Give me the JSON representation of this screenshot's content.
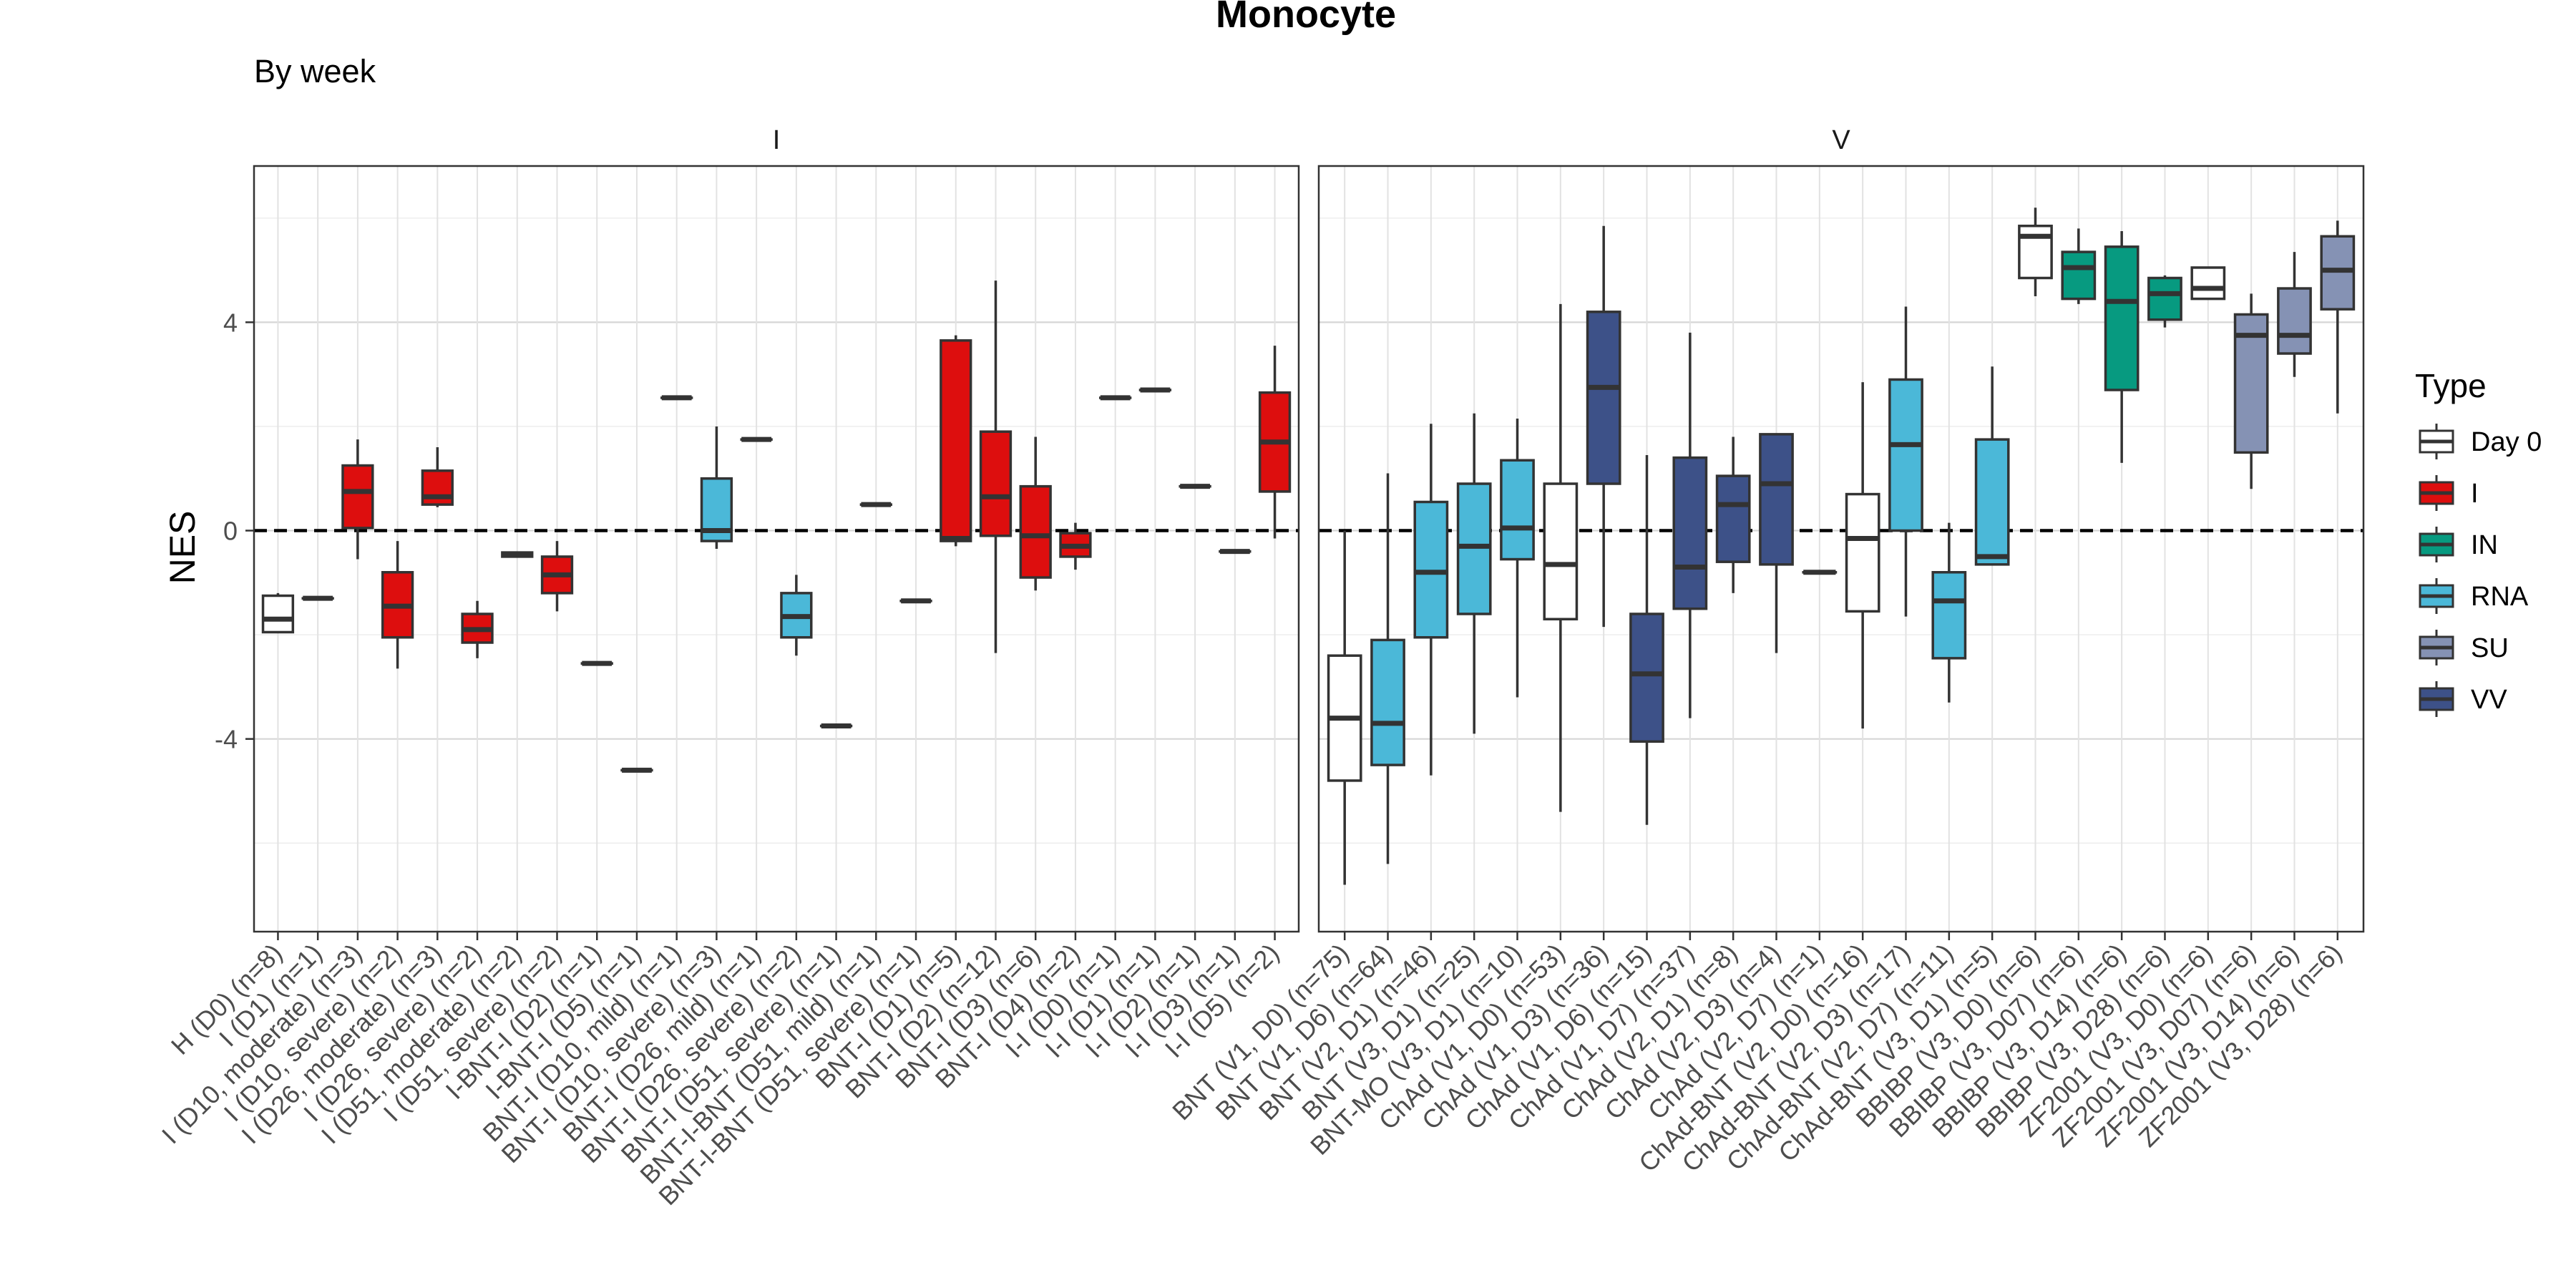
{
  "chart_data": {
    "type": "box",
    "title": "Monocyte",
    "subtitle": "By week",
    "ylabel": "NES",
    "xlabel": "",
    "ylim": [
      -7.7,
      7.0
    ],
    "yticks": [
      4,
      0,
      -4
    ],
    "ytick_labels": [
      "4",
      "0",
      "-4"
    ],
    "reference_line": {
      "y": 0,
      "style": "dashed"
    },
    "grid": true,
    "legend": {
      "title": "Type",
      "position": "right",
      "entries": [
        {
          "label": "Day 0",
          "color": "#ffffff"
        },
        {
          "label": "I",
          "color": "#dd0e0e"
        },
        {
          "label": "IN",
          "color": "#079a80"
        },
        {
          "label": "RNA",
          "color": "#4bb8d8"
        },
        {
          "label": "SU",
          "color": "#8592b4"
        },
        {
          "label": "VV",
          "color": "#3d5188"
        }
      ]
    },
    "panels": [
      {
        "label": "I",
        "categories": [
          {
            "label": "H (D0) (n=8)",
            "type": "Day 0",
            "q1": -1.95,
            "median": -1.7,
            "q3": -1.25,
            "whisker_low": -1.95,
            "whisker_high": -1.2
          },
          {
            "label": "I (D1) (n=1)",
            "type": "I",
            "q1": -1.3,
            "median": -1.3,
            "q3": -1.3,
            "whisker_low": -1.3,
            "whisker_high": -1.3
          },
          {
            "label": "I (D10, moderate) (n=3)",
            "type": "I",
            "q1": 0.05,
            "median": 0.75,
            "q3": 1.25,
            "whisker_low": -0.55,
            "whisker_high": 1.75
          },
          {
            "label": "I (D10, severe) (n=2)",
            "type": "I",
            "q1": -2.05,
            "median": -1.45,
            "q3": -0.8,
            "whisker_low": -2.65,
            "whisker_high": -0.2
          },
          {
            "label": "I (D26, moderate) (n=3)",
            "type": "I",
            "q1": 0.5,
            "median": 0.65,
            "q3": 1.15,
            "whisker_low": 0.45,
            "whisker_high": 1.6
          },
          {
            "label": "I (D26, severe) (n=2)",
            "type": "I",
            "q1": -2.15,
            "median": -1.9,
            "q3": -1.6,
            "whisker_low": -2.45,
            "whisker_high": -1.35
          },
          {
            "label": "I (D51, moderate) (n=2)",
            "type": "I",
            "q1": -0.5,
            "median": -0.45,
            "q3": -0.42,
            "whisker_low": -0.52,
            "whisker_high": -0.4
          },
          {
            "label": "I (D51, severe) (n=2)",
            "type": "I",
            "q1": -1.2,
            "median": -0.85,
            "q3": -0.5,
            "whisker_low": -1.55,
            "whisker_high": -0.2
          },
          {
            "label": "I-BNT-I (D2) (n=1)",
            "type": "I",
            "q1": -2.55,
            "median": -2.55,
            "q3": -2.55,
            "whisker_low": -2.55,
            "whisker_high": -2.55
          },
          {
            "label": "I-BNT-I (D5) (n=1)",
            "type": "I",
            "q1": -4.6,
            "median": -4.6,
            "q3": -4.6,
            "whisker_low": -4.6,
            "whisker_high": -4.6
          },
          {
            "label": "BNT-I (D10, mild) (n=1)",
            "type": "I",
            "q1": 2.55,
            "median": 2.55,
            "q3": 2.55,
            "whisker_low": 2.55,
            "whisker_high": 2.55
          },
          {
            "label": "BNT-I (D10, severe) (n=3)",
            "type": "RNA",
            "q1": -0.2,
            "median": 0.0,
            "q3": 1.0,
            "whisker_low": -0.35,
            "whisker_high": 2.0
          },
          {
            "label": "BNT-I (D26, mild) (n=1)",
            "type": "I",
            "q1": 1.75,
            "median": 1.75,
            "q3": 1.75,
            "whisker_low": 1.75,
            "whisker_high": 1.75
          },
          {
            "label": "BNT-I (D26, severe) (n=2)",
            "type": "RNA",
            "q1": -2.05,
            "median": -1.65,
            "q3": -1.2,
            "whisker_low": -2.4,
            "whisker_high": -0.85
          },
          {
            "label": "BNT-I (D51, severe) (n=1)",
            "type": "I",
            "q1": -3.75,
            "median": -3.75,
            "q3": -3.75,
            "whisker_low": -3.75,
            "whisker_high": -3.75
          },
          {
            "label": "BNT-I-BNT (D51, mild) (n=1)",
            "type": "I",
            "q1": 0.5,
            "median": 0.5,
            "q3": 0.5,
            "whisker_low": 0.5,
            "whisker_high": 0.5
          },
          {
            "label": "BNT-I-BNT (D51, severe) (n=1)",
            "type": "I",
            "q1": -1.35,
            "median": -1.35,
            "q3": -1.35,
            "whisker_low": -1.35,
            "whisker_high": -1.35
          },
          {
            "label": "BNT-I (D1) (n=5)",
            "type": "I",
            "q1": -0.2,
            "median": -0.15,
            "q3": 3.65,
            "whisker_low": -0.3,
            "whisker_high": 3.75
          },
          {
            "label": "BNT-I (D2) (n=12)",
            "type": "I",
            "q1": -0.1,
            "median": 0.65,
            "q3": 1.9,
            "whisker_low": -2.35,
            "whisker_high": 4.8
          },
          {
            "label": "BNT-I (D3) (n=6)",
            "type": "I",
            "q1": -0.9,
            "median": -0.1,
            "q3": 0.85,
            "whisker_low": -1.15,
            "whisker_high": 1.8
          },
          {
            "label": "BNT-I (D4) (n=2)",
            "type": "I",
            "q1": -0.5,
            "median": -0.3,
            "q3": -0.05,
            "whisker_low": -0.75,
            "whisker_high": 0.15
          },
          {
            "label": "I-I (D0) (n=1)",
            "type": "I",
            "q1": 2.55,
            "median": 2.55,
            "q3": 2.55,
            "whisker_low": 2.55,
            "whisker_high": 2.55
          },
          {
            "label": "I-I (D1) (n=1)",
            "type": "I",
            "q1": 2.7,
            "median": 2.7,
            "q3": 2.7,
            "whisker_low": 2.7,
            "whisker_high": 2.7
          },
          {
            "label": "I-I (D2) (n=1)",
            "type": "I",
            "q1": 0.85,
            "median": 0.85,
            "q3": 0.85,
            "whisker_low": 0.85,
            "whisker_high": 0.85
          },
          {
            "label": "I-I (D3) (n=1)",
            "type": "I",
            "q1": -0.4,
            "median": -0.4,
            "q3": -0.4,
            "whisker_low": -0.4,
            "whisker_high": -0.4
          },
          {
            "label": "I-I (D5) (n=2)",
            "type": "I",
            "q1": 0.75,
            "median": 1.7,
            "q3": 2.65,
            "whisker_low": -0.15,
            "whisker_high": 3.55
          }
        ]
      },
      {
        "label": "V",
        "categories": [
          {
            "label": "BNT (V1, D0) (n=75)",
            "type": "Day 0",
            "q1": -4.8,
            "median": -3.6,
            "q3": -2.4,
            "whisker_low": -6.8,
            "whisker_high": 0.0
          },
          {
            "label": "BNT (V1, D6) (n=64)",
            "type": "RNA",
            "q1": -4.5,
            "median": -3.7,
            "q3": -2.1,
            "whisker_low": -6.4,
            "whisker_high": 1.1
          },
          {
            "label": "BNT (V2, D1) (n=46)",
            "type": "RNA",
            "q1": -2.05,
            "median": -0.8,
            "q3": 0.55,
            "whisker_low": -4.7,
            "whisker_high": 2.05
          },
          {
            "label": "BNT (V3, D1) (n=25)",
            "type": "RNA",
            "q1": -1.6,
            "median": -0.3,
            "q3": 0.9,
            "whisker_low": -3.9,
            "whisker_high": 2.25
          },
          {
            "label": "BNT-MO (V3, D1) (n=10)",
            "type": "RNA",
            "q1": -0.55,
            "median": 0.05,
            "q3": 1.35,
            "whisker_low": -3.2,
            "whisker_high": 2.15
          },
          {
            "label": "ChAd (V1, D0) (n=53)",
            "type": "Day 0",
            "q1": -1.7,
            "median": -0.65,
            "q3": 0.9,
            "whisker_low": -5.4,
            "whisker_high": 4.35
          },
          {
            "label": "ChAd (V1, D3) (n=36)",
            "type": "VV",
            "q1": 0.9,
            "median": 2.75,
            "q3": 4.2,
            "whisker_low": -1.85,
            "whisker_high": 5.85
          },
          {
            "label": "ChAd (V1, D6) (n=15)",
            "type": "VV",
            "q1": -4.05,
            "median": -2.75,
            "q3": -1.6,
            "whisker_low": -5.65,
            "whisker_high": 1.45
          },
          {
            "label": "ChAd (V1, D7) (n=37)",
            "type": "VV",
            "q1": -1.5,
            "median": -0.7,
            "q3": 1.4,
            "whisker_low": -3.6,
            "whisker_high": 3.8
          },
          {
            "label": "ChAd (V2, D1) (n=8)",
            "type": "VV",
            "q1": -0.6,
            "median": 0.5,
            "q3": 1.05,
            "whisker_low": -1.2,
            "whisker_high": 1.8
          },
          {
            "label": "ChAd (V2, D3) (n=4)",
            "type": "VV",
            "q1": -0.65,
            "median": 0.9,
            "q3": 1.85,
            "whisker_low": -2.35,
            "whisker_high": 1.85
          },
          {
            "label": "ChAd (V2, D7) (n=1)",
            "type": "VV",
            "q1": -0.8,
            "median": -0.8,
            "q3": -0.8,
            "whisker_low": -0.8,
            "whisker_high": -0.8
          },
          {
            "label": "ChAd-BNT (V2, D0) (n=16)",
            "type": "Day 0",
            "q1": -1.55,
            "median": -0.15,
            "q3": 0.7,
            "whisker_low": -3.8,
            "whisker_high": 2.85
          },
          {
            "label": "ChAd-BNT (V2, D3) (n=17)",
            "type": "RNA",
            "q1": 0.0,
            "median": 1.65,
            "q3": 2.9,
            "whisker_low": -1.65,
            "whisker_high": 4.3
          },
          {
            "label": "ChAd-BNT (V2, D7) (n=11)",
            "type": "RNA",
            "q1": -2.45,
            "median": -1.35,
            "q3": -0.8,
            "whisker_low": -3.3,
            "whisker_high": 0.15
          },
          {
            "label": "ChAd-BNT (V3, D1) (n=5)",
            "type": "RNA",
            "q1": -0.65,
            "median": -0.5,
            "q3": 1.75,
            "whisker_low": -0.65,
            "whisker_high": 3.15
          },
          {
            "label": "BBIBP (V3, D0) (n=6)",
            "type": "Day 0",
            "q1": 4.85,
            "median": 5.65,
            "q3": 5.85,
            "whisker_low": 4.5,
            "whisker_high": 6.2
          },
          {
            "label": "BBIBP (V3, D07) (n=6)",
            "type": "IN",
            "q1": 4.45,
            "median": 5.05,
            "q3": 5.35,
            "whisker_low": 4.35,
            "whisker_high": 5.8
          },
          {
            "label": "BBIBP (V3, D14) (n=6)",
            "type": "IN",
            "q1": 2.7,
            "median": 4.4,
            "q3": 5.45,
            "whisker_low": 1.3,
            "whisker_high": 5.75
          },
          {
            "label": "BBIBP (V3, D28) (n=6)",
            "type": "IN",
            "q1": 4.05,
            "median": 4.55,
            "q3": 4.85,
            "whisker_low": 3.9,
            "whisker_high": 4.9
          },
          {
            "label": "ZF2001 (V3, D0) (n=6)",
            "type": "Day 0",
            "q1": 4.45,
            "median": 4.65,
            "q3": 5.05,
            "whisker_low": 4.45,
            "whisker_high": 5.05
          },
          {
            "label": "ZF2001 (V3, D07) (n=6)",
            "type": "SU",
            "q1": 1.5,
            "median": 3.75,
            "q3": 4.15,
            "whisker_low": 0.8,
            "whisker_high": 4.55
          },
          {
            "label": "ZF2001 (V3, D14) (n=6)",
            "type": "SU",
            "q1": 3.4,
            "median": 3.75,
            "q3": 4.65,
            "whisker_low": 2.95,
            "whisker_high": 5.35
          },
          {
            "label": "ZF2001 (V3, D28) (n=6)",
            "type": "SU",
            "q1": 4.25,
            "median": 5.0,
            "q3": 5.65,
            "whisker_low": 2.25,
            "whisker_high": 5.95
          }
        ]
      }
    ]
  }
}
